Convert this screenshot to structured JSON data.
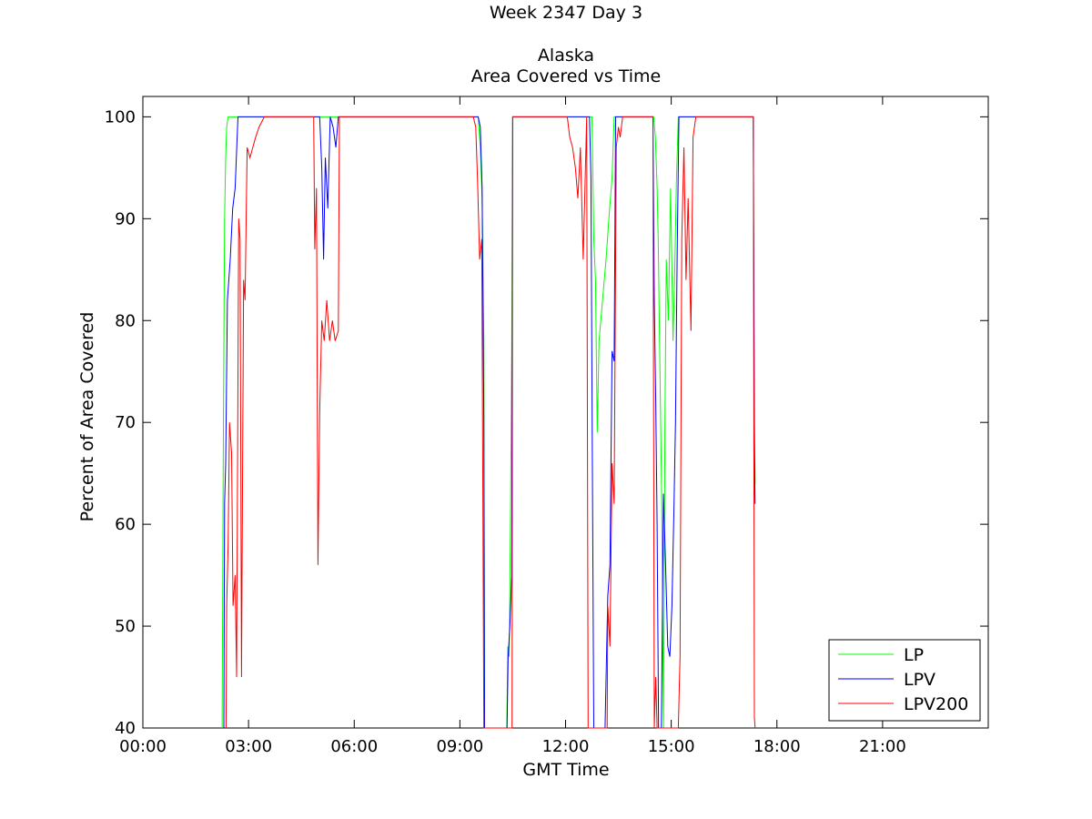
{
  "chart_data": {
    "type": "line",
    "title": [
      "Week 2347 Day 3",
      "",
      "Alaska",
      "Area Covered vs Time"
    ],
    "xlabel": "GMT Time",
    "ylabel": "Percent of Area Covered",
    "xlim": [
      0,
      24
    ],
    "ylim": [
      40,
      102
    ],
    "x_unit": "hours (GMT)",
    "xticks": [
      0,
      3,
      6,
      9,
      12,
      15,
      18,
      21
    ],
    "xtick_labels": [
      "00:00",
      "03:00",
      "06:00",
      "09:00",
      "12:00",
      "15:00",
      "18:00",
      "21:00"
    ],
    "yticks": [
      40,
      50,
      60,
      70,
      80,
      90,
      100
    ],
    "ytick_labels": [
      "40",
      "50",
      "60",
      "70",
      "80",
      "90",
      "100"
    ],
    "grid": false,
    "legend_position": "bottom-right",
    "series": [
      {
        "name": "LP",
        "color": "#00ff00",
        "points": [
          [
            2.25,
            40
          ],
          [
            2.28,
            66
          ],
          [
            2.32,
            90
          ],
          [
            2.35,
            96
          ],
          [
            2.38,
            99
          ],
          [
            2.42,
            100
          ],
          [
            9.52,
            100
          ],
          [
            9.58,
            97
          ],
          [
            9.63,
            92
          ],
          [
            9.68,
            78
          ],
          [
            9.7,
            40
          ],
          [
            10.33,
            40
          ],
          [
            10.36,
            48
          ],
          [
            10.4,
            47
          ],
          [
            10.44,
            62
          ],
          [
            10.47,
            77
          ],
          [
            10.5,
            100
          ],
          [
            12.75,
            100
          ],
          [
            12.8,
            88
          ],
          [
            12.85,
            84
          ],
          [
            12.9,
            69
          ],
          [
            12.95,
            78
          ],
          [
            13.05,
            82
          ],
          [
            13.15,
            86
          ],
          [
            13.25,
            91
          ],
          [
            13.32,
            94
          ],
          [
            13.38,
            100
          ],
          [
            14.5,
            100
          ],
          [
            14.55,
            98
          ],
          [
            14.6,
            93
          ],
          [
            14.63,
            88
          ],
          [
            14.66,
            80
          ],
          [
            14.7,
            70
          ],
          [
            14.73,
            62
          ],
          [
            14.76,
            50
          ],
          [
            14.78,
            40
          ],
          [
            14.82,
            70
          ],
          [
            14.86,
            86
          ],
          [
            14.92,
            80
          ],
          [
            14.98,
            93
          ],
          [
            15.05,
            78
          ],
          [
            15.1,
            85
          ],
          [
            15.15,
            94
          ],
          [
            15.2,
            100
          ],
          [
            17.33,
            100
          ],
          [
            17.36,
            70
          ],
          [
            17.38,
            64
          ]
        ]
      },
      {
        "name": "LPV",
        "color": "#0000ff",
        "points": [
          [
            2.3,
            40
          ],
          [
            2.32,
            62
          ],
          [
            2.35,
            66
          ],
          [
            2.4,
            82
          ],
          [
            2.48,
            86
          ],
          [
            2.55,
            91
          ],
          [
            2.62,
            93
          ],
          [
            2.7,
            100
          ],
          [
            5.02,
            100
          ],
          [
            5.08,
            95
          ],
          [
            5.13,
            86
          ],
          [
            5.18,
            96
          ],
          [
            5.25,
            91
          ],
          [
            5.32,
            100
          ],
          [
            5.4,
            99
          ],
          [
            5.48,
            97
          ],
          [
            5.55,
            100
          ],
          [
            9.52,
            100
          ],
          [
            9.58,
            99
          ],
          [
            9.63,
            93
          ],
          [
            9.68,
            70
          ],
          [
            9.7,
            40
          ],
          [
            10.34,
            40
          ],
          [
            10.37,
            47
          ],
          [
            10.42,
            50
          ],
          [
            10.47,
            55
          ],
          [
            10.5,
            100
          ],
          [
            12.68,
            100
          ],
          [
            12.72,
            94
          ],
          [
            12.76,
            67
          ],
          [
            12.8,
            40
          ],
          [
            13.12,
            40
          ],
          [
            13.2,
            53
          ],
          [
            13.26,
            56
          ],
          [
            13.32,
            77
          ],
          [
            13.38,
            76
          ],
          [
            13.42,
            100
          ],
          [
            14.48,
            100
          ],
          [
            14.52,
            82
          ],
          [
            14.56,
            72
          ],
          [
            14.6,
            60
          ],
          [
            14.64,
            40
          ],
          [
            14.72,
            40
          ],
          [
            14.78,
            63
          ],
          [
            14.84,
            56
          ],
          [
            14.9,
            48
          ],
          [
            14.96,
            47
          ],
          [
            15.02,
            52
          ],
          [
            15.08,
            62
          ],
          [
            15.12,
            70
          ],
          [
            15.17,
            87
          ],
          [
            15.22,
            100
          ],
          [
            17.33,
            100
          ],
          [
            17.36,
            67
          ],
          [
            17.38,
            62
          ]
        ]
      },
      {
        "name": "LPV200",
        "color": "#ff0000",
        "points": [
          [
            2.36,
            40
          ],
          [
            2.38,
            52
          ],
          [
            2.42,
            58
          ],
          [
            2.46,
            70
          ],
          [
            2.52,
            67
          ],
          [
            2.56,
            52
          ],
          [
            2.62,
            55
          ],
          [
            2.66,
            45
          ],
          [
            2.72,
            90
          ],
          [
            2.76,
            88
          ],
          [
            2.8,
            45
          ],
          [
            2.86,
            84
          ],
          [
            2.9,
            82
          ],
          [
            2.96,
            97
          ],
          [
            3.04,
            96
          ],
          [
            3.12,
            97
          ],
          [
            3.2,
            98
          ],
          [
            3.3,
            99
          ],
          [
            3.45,
            100
          ],
          [
            4.85,
            100
          ],
          [
            4.88,
            87
          ],
          [
            4.93,
            93
          ],
          [
            4.97,
            56
          ],
          [
            5.02,
            71
          ],
          [
            5.08,
            80
          ],
          [
            5.15,
            78
          ],
          [
            5.22,
            82
          ],
          [
            5.3,
            78
          ],
          [
            5.38,
            80
          ],
          [
            5.46,
            78
          ],
          [
            5.55,
            79
          ],
          [
            5.58,
            100
          ],
          [
            9.38,
            100
          ],
          [
            9.45,
            99
          ],
          [
            9.5,
            94
          ],
          [
            9.56,
            86
          ],
          [
            9.62,
            88
          ],
          [
            9.68,
            40
          ],
          [
            10.48,
            40
          ],
          [
            10.5,
            100
          ],
          [
            12.05,
            100
          ],
          [
            12.12,
            98
          ],
          [
            12.2,
            97
          ],
          [
            12.28,
            95
          ],
          [
            12.35,
            92
          ],
          [
            12.42,
            97
          ],
          [
            12.5,
            86
          ],
          [
            12.6,
            100
          ],
          [
            12.64,
            40
          ],
          [
            13.18,
            40
          ],
          [
            13.2,
            52
          ],
          [
            13.26,
            48
          ],
          [
            13.32,
            66
          ],
          [
            13.38,
            62
          ],
          [
            13.44,
            97
          ],
          [
            13.5,
            99
          ],
          [
            13.55,
            98
          ],
          [
            13.62,
            100
          ],
          [
            14.48,
            100
          ],
          [
            14.52,
            40
          ],
          [
            14.56,
            45
          ],
          [
            14.6,
            40
          ],
          [
            15.2,
            40
          ],
          [
            15.25,
            47
          ],
          [
            15.3,
            88
          ],
          [
            15.36,
            97
          ],
          [
            15.42,
            84
          ],
          [
            15.48,
            92
          ],
          [
            15.56,
            79
          ],
          [
            15.62,
            98
          ],
          [
            15.7,
            100
          ],
          [
            17.33,
            100
          ],
          [
            17.36,
            41
          ],
          [
            17.38,
            40
          ]
        ]
      }
    ]
  }
}
